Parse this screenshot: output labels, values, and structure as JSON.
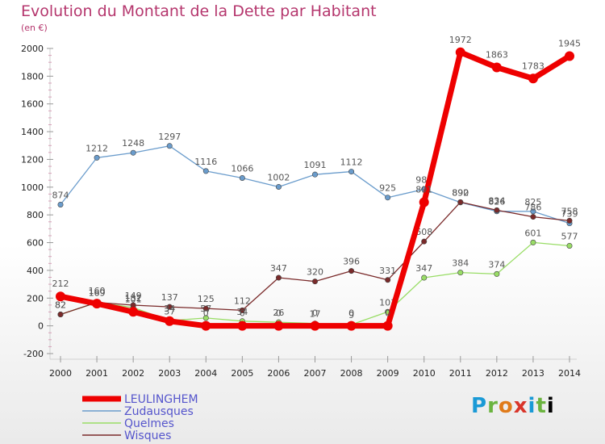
{
  "header": {
    "title": "Evolution du Montant de la Dette par Habitant",
    "unit": "(en €)"
  },
  "logo": {
    "parts": [
      "P",
      "r",
      "o",
      "x",
      "i",
      "t",
      "i"
    ]
  },
  "chart_data": {
    "type": "line",
    "title": "Evolution du Montant de la Dette par Habitant",
    "ylabel": "(en €)",
    "x": [
      2000,
      2001,
      2002,
      2003,
      2004,
      2005,
      2006,
      2007,
      2008,
      2009,
      2010,
      2011,
      2012,
      2013,
      2014
    ],
    "ylim": [
      -200,
      2000
    ],
    "yticks": [
      -200,
      0,
      200,
      400,
      600,
      800,
      1000,
      1200,
      1400,
      1600,
      1800,
      2000
    ],
    "grid": false,
    "legend": "bottom-left",
    "series": [
      {
        "name": "LEULINGHEM",
        "color": "#ee0000",
        "emphasis": true,
        "values": [
          212,
          160,
          101,
          34,
          0,
          0,
          0,
          0,
          0,
          0,
          891,
          1972,
          1863,
          1783,
          1945
        ]
      },
      {
        "name": "Zudausques",
        "color": "#6a9ccc",
        "values": [
          874,
          1212,
          1248,
          1297,
          1116,
          1066,
          1002,
          1091,
          1112,
          925,
          985,
          890,
          826,
          825,
          739
        ]
      },
      {
        "name": "Quelmes",
        "color": "#99dd66",
        "values": [
          82,
          169,
          132,
          37,
          57,
          34,
          26,
          17,
          9,
          101,
          347,
          384,
          374,
          601,
          577
        ]
      },
      {
        "name": "Wisques",
        "color": "#7a2a2a",
        "values": [
          82,
          169,
          149,
          137,
          125,
          112,
          347,
          320,
          396,
          331,
          608,
          892,
          834,
          786,
          758
        ]
      }
    ]
  }
}
